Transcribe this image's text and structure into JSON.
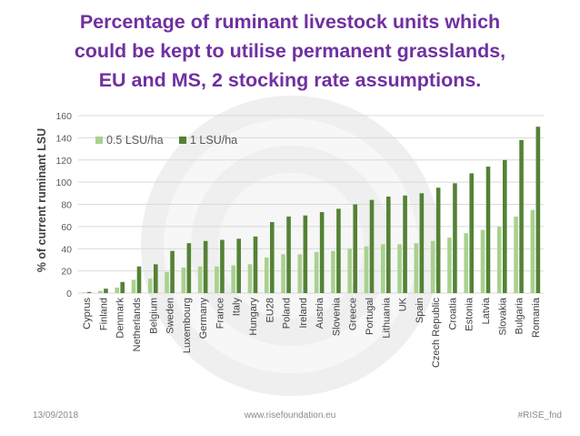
{
  "title_lines": [
    "Percentage of ruminant livestock units which",
    "could be kept to utilise permanent grasslands,",
    "EU and MS, 2 stocking rate assumptions."
  ],
  "footer": {
    "date": "13/09/2018",
    "website": "www.risefoundation.eu",
    "hashtag": "#RISE_fnd"
  },
  "colors": {
    "title": "#7030a0",
    "series_light": "#a9d18e",
    "series_dark": "#548235",
    "grid": "#d9d9d9",
    "axis_text": "#595959"
  },
  "chart_data": {
    "type": "bar",
    "ylabel": "% of current ruminant LSU",
    "xlabel": "",
    "ylim": [
      0,
      160
    ],
    "yticks": [
      0,
      20,
      40,
      60,
      80,
      100,
      120,
      140,
      160
    ],
    "grid": true,
    "legend_position": "top-left",
    "categories": [
      "Cyprus",
      "Finland",
      "Denmark",
      "Netherlands",
      "Belgium",
      "Sweden",
      "Luxembourg",
      "Germany",
      "France",
      "Italy",
      "Hungary",
      "EU28",
      "Poland",
      "Ireland",
      "Austria",
      "Slovenia",
      "Greece",
      "Portugal",
      "Lithuania",
      "UK",
      "Spain",
      "Czech Republic",
      "Croatia",
      "Estonia",
      "Latvia",
      "Slovakia",
      "Bulgaria",
      "Romania"
    ],
    "series": [
      {
        "name": "0.5 LSU/ha",
        "color": "#a9d18e",
        "values": [
          0.5,
          2,
          5,
          12,
          13,
          19,
          23,
          24,
          24,
          25,
          26,
          32,
          35,
          35,
          37,
          38,
          40,
          42,
          44,
          44,
          45,
          47,
          50,
          54,
          57,
          60,
          69,
          75
        ]
      },
      {
        "name": "1 LSU/ha",
        "color": "#548235",
        "values": [
          1,
          4,
          10,
          24,
          26,
          38,
          45,
          47,
          48,
          49,
          51,
          64,
          69,
          70,
          73,
          76,
          80,
          84,
          87,
          88,
          90,
          95,
          99,
          108,
          114,
          120,
          138,
          150
        ]
      }
    ]
  }
}
